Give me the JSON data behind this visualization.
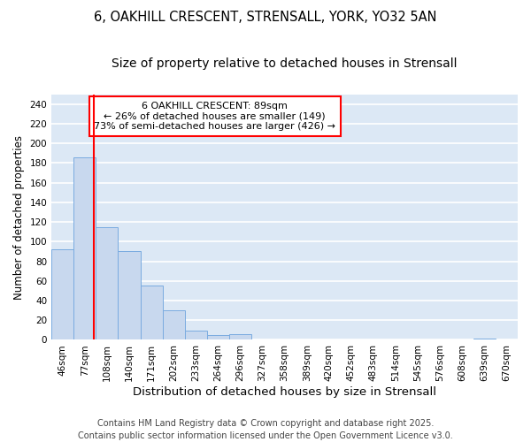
{
  "title1": "6, OAKHILL CRESCENT, STRENSALL, YORK, YO32 5AN",
  "title2": "Size of property relative to detached houses in Strensall",
  "xlabel": "Distribution of detached houses by size in Strensall",
  "ylabel": "Number of detached properties",
  "categories": [
    "46sqm",
    "77sqm",
    "108sqm",
    "140sqm",
    "171sqm",
    "202sqm",
    "233sqm",
    "264sqm",
    "296sqm",
    "327sqm",
    "358sqm",
    "389sqm",
    "420sqm",
    "452sqm",
    "483sqm",
    "514sqm",
    "545sqm",
    "576sqm",
    "608sqm",
    "639sqm",
    "670sqm"
  ],
  "values": [
    92,
    186,
    115,
    90,
    55,
    30,
    9,
    5,
    6,
    0,
    0,
    0,
    0,
    0,
    0,
    0,
    0,
    0,
    0,
    1,
    0
  ],
  "bar_color": "#c8d8ee",
  "bar_edge_color": "#7aabe0",
  "vline_color": "red",
  "annotation_text": "6 OAKHILL CRESCENT: 89sqm\n← 26% of detached houses are smaller (149)\n73% of semi-detached houses are larger (426) →",
  "annotation_box_color": "white",
  "annotation_box_edge": "red",
  "ylim": [
    0,
    250
  ],
  "yticks": [
    0,
    20,
    40,
    60,
    80,
    100,
    120,
    140,
    160,
    180,
    200,
    220,
    240
  ],
  "background_color": "#dce8f5",
  "grid_color": "white",
  "footnote": "Contains HM Land Registry data © Crown copyright and database right 2025.\nContains public sector information licensed under the Open Government Licence v3.0.",
  "title1_fontsize": 10.5,
  "title2_fontsize": 10,
  "xlabel_fontsize": 9.5,
  "ylabel_fontsize": 8.5,
  "tick_fontsize": 7.5,
  "footnote_fontsize": 7,
  "annot_fontsize": 8
}
